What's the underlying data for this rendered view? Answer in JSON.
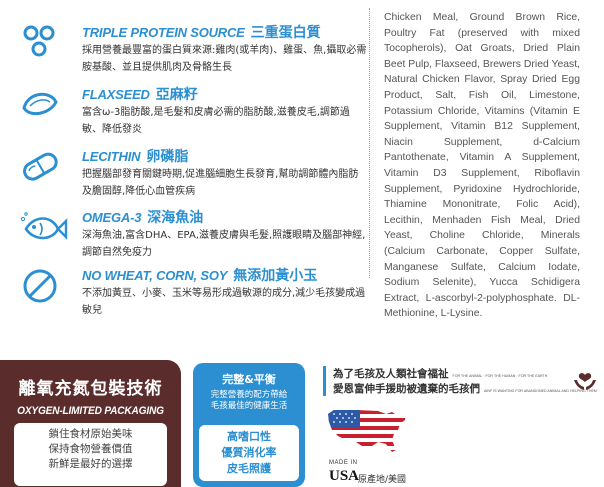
{
  "features": [
    {
      "icon": "protein-icon",
      "title_en": "TRIPLE PROTEIN SOURCE",
      "title_zh": "三重蛋白質",
      "desc": "採用營養最豐富的蛋白質來源:雞肉(或羊肉)、雞蛋、魚,攝取必需胺基酸、並且提供肌肉及骨骼生長"
    },
    {
      "icon": "flaxseed-icon",
      "title_en": "FLAXSEED",
      "title_zh": "亞麻籽",
      "desc": "富含ω-3脂肪酸,是毛髮和皮膚必需的脂肪酸,滋養皮毛,調節過敏、降低發炎"
    },
    {
      "icon": "capsule-icon",
      "title_en": "LECITHIN",
      "title_zh": "卵磷脂",
      "desc": "把握腦部發育關鍵時期,促進腦細胞生長發育,幫助調節體內脂肪及膽固醇,降低心血管疾病"
    },
    {
      "icon": "fish-icon",
      "title_en": "OMEGA-3",
      "title_zh": "深海魚油",
      "desc": "深海魚油,富含DHA、EPA,滋養皮膚與毛髮,照護眼睛及腦部神經,調節自然免疫力"
    },
    {
      "icon": "no-icon",
      "title_en": "NO WHEAT, CORN, SOY",
      "title_zh": "無添加黃小玉",
      "desc": "不添加黃豆、小麥、玉米等易形成過敏源的成分,減少毛孩變成過敏兒"
    }
  ],
  "ingredients": "Chicken Meal, Ground Brown Rice, Poultry Fat (preserved with mixed Tocopherols), Oat Groats, Dried Plain Beet Pulp, Flaxseed, Brewers Dried Yeast, Natural Chicken Flavor, Spray Dried Egg Product, Salt, Fish Oil, Limestone, Potassium Chloride, Vitamins (Vitamin E Supplement, Vitamin B12 Supplement, Niacin Supplement, d-Calcium Pantothenate, Vitamin A Supplement, Vitamin D3 Supplement, Riboflavin Supplement, Pyridoxine Hydrochloride, Thiamine Mononitrate, Folic Acid), Lecithin, Menhaden Fish Meal, Dried Yeast, Choline Chloride, Minerals (Calcium Carbonate, Copper Sulfate, Manganese Sulfate, Calcium Iodate, Sodium Selenite), Yucca Schidigera Extract, L-ascorbyl-2-polyphosphate. DL-Methionine, L-Lysine.",
  "packaging": {
    "title_zh": "離氧充氮包裝技術",
    "title_en": "OXYGEN-LIMITED PACKAGING",
    "lines": [
      "鎖住食材原始美味",
      "保持食物營養價值",
      "新鮮是最好的選擇"
    ]
  },
  "balance": {
    "title": "完整&平衡",
    "sub1": "完整營養的配方帶給",
    "sub2": "毛孩最佳的健康生活",
    "lines": [
      "高嗜口性",
      "優質消化率",
      "皮毛照護"
    ]
  },
  "charity": {
    "line1": "為了毛孩及人類社會福祉",
    "line1_small": "FOR THE ANIMAL · FOR THE HUMAN · FOR THE EARTH",
    "line2": "愛恩富伸手援助被遺棄的毛孩們",
    "line2_small": "AINF IS WANTING FOR ABANDONED ANIMAL AND HELPING THEM"
  },
  "origin": {
    "made_in": "MADE IN",
    "country": "USA",
    "label": "原產地/美國"
  },
  "colors": {
    "accent": "#2b8fd1",
    "packaging_bg": "#5b2c2c",
    "flag_blue": "#2d5aa6",
    "flag_red": "#c8202f"
  }
}
